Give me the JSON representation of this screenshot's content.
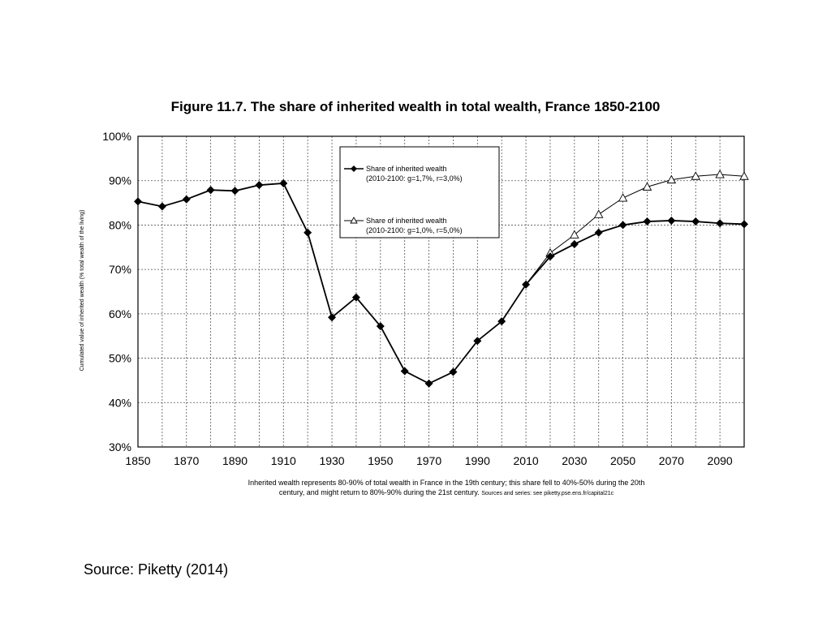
{
  "chart_data": {
    "type": "line",
    "title": "Figure 11.7. The share of inherited wealth in total wealth, France 1850-2100",
    "xlabel": "",
    "ylabel": "Cumulated value of inherited wealth (% total wealth of the living)",
    "xlim": [
      1850,
      2100
    ],
    "ylim": [
      0.3,
      1.0
    ],
    "x_ticks": [
      "1850",
      "1870",
      "1890",
      "1910",
      "1930",
      "1950",
      "1970",
      "1990",
      "2010",
      "2030",
      "2050",
      "2070",
      "2090"
    ],
    "y_ticks": [
      "30%",
      "40%",
      "50%",
      "60%",
      "70%",
      "80%",
      "90%",
      "100%"
    ],
    "grid": true,
    "legend_position": "top-center",
    "series": [
      {
        "name": "Share of inherited wealth",
        "name_line2": "(2010-2100: g=1,7%, r=3,0%)",
        "marker": "filled-diamond",
        "color": "#000000",
        "x": [
          1850,
          1860,
          1870,
          1880,
          1890,
          1900,
          1910,
          1920,
          1930,
          1940,
          1950,
          1960,
          1970,
          1980,
          1990,
          2000,
          2010,
          2020,
          2030,
          2040,
          2050,
          2060,
          2070,
          2080,
          2090,
          2100
        ],
        "values": [
          0.853,
          0.842,
          0.858,
          0.879,
          0.877,
          0.89,
          0.894,
          0.783,
          0.592,
          0.637,
          0.572,
          0.471,
          0.443,
          0.469,
          0.539,
          0.583,
          0.666,
          0.729,
          0.757,
          0.783,
          0.8,
          0.808,
          0.81,
          0.808,
          0.804,
          0.802
        ]
      },
      {
        "name": "Share of inherited wealth",
        "name_line2": "(2010-2100: g=1,0%, r=5,0%)",
        "marker": "open-triangle",
        "color": "#000000",
        "x": [
          2010,
          2020,
          2030,
          2040,
          2050,
          2060,
          2070,
          2080,
          2090,
          2100
        ],
        "values": [
          0.666,
          0.737,
          0.778,
          0.824,
          0.861,
          0.886,
          0.902,
          0.91,
          0.914,
          0.91
        ]
      }
    ],
    "note_line1": "Inherited wealth represents 80-90% of total wealth in France in the 19th century; this share fell to 40%-50% during the 20th",
    "note_line2_main": "century, and might return to 80%-90% during the 21st century.",
    "note_line2_sources": "Sources and series: see piketty.pse.ens.fr/capital21c"
  },
  "source": "Source: Piketty (2014)"
}
